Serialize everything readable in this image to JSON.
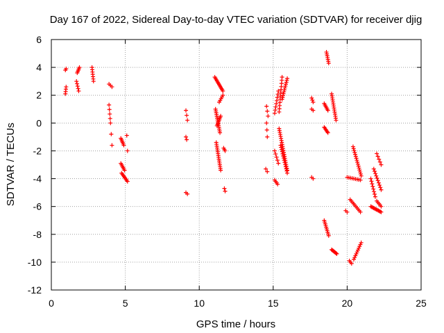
{
  "chart_data": {
    "type": "scatter",
    "title": "Day 167 of 2022, Sidereal Day-to-day VTEC variation (SDTVAR) for receiver djig",
    "xlabel": "GPS time / hours",
    "ylabel": "SDTVAR / TECUs",
    "xlim": [
      0,
      25
    ],
    "ylim": [
      -12,
      6
    ],
    "xticks": [
      0,
      5,
      10,
      15,
      20,
      25
    ],
    "yticks": [
      -12,
      -10,
      -8,
      -6,
      -4,
      -2,
      0,
      2,
      4,
      6
    ],
    "grid": true,
    "marker": "+",
    "color": "#ff0000",
    "segments": [
      {
        "x0": 0.95,
        "x1": 1.0,
        "y0": 2.1,
        "y1": 2.6,
        "n": 4
      },
      {
        "x0": 0.95,
        "x1": 1.0,
        "y0": 3.8,
        "y1": 3.9,
        "n": 2
      },
      {
        "x0": 1.75,
        "x1": 1.9,
        "y0": 3.6,
        "y1": 4.0,
        "n": 5
      },
      {
        "x0": 1.7,
        "x1": 1.85,
        "y0": 3.0,
        "y1": 2.3,
        "n": 5
      },
      {
        "x0": 2.75,
        "x1": 2.85,
        "y0": 4.0,
        "y1": 3.0,
        "n": 7
      },
      {
        "x0": 3.9,
        "x1": 4.1,
        "y0": 2.8,
        "y1": 2.6,
        "n": 3
      },
      {
        "x0": 3.9,
        "x1": 4.0,
        "y0": 1.3,
        "y1": 0.0,
        "n": 5
      },
      {
        "x0": 4.05,
        "x1": 4.1,
        "y0": -0.8,
        "y1": -1.6,
        "n": 2
      },
      {
        "x0": 4.7,
        "x1": 4.9,
        "y0": -1.1,
        "y1": -1.6,
        "n": 6
      },
      {
        "x0": 5.1,
        "x1": 5.15,
        "y0": -0.9,
        "y1": -2.0,
        "n": 2
      },
      {
        "x0": 4.7,
        "x1": 4.95,
        "y0": -2.9,
        "y1": -3.4,
        "n": 6
      },
      {
        "x0": 4.75,
        "x1": 5.15,
        "y0": -3.6,
        "y1": -4.2,
        "n": 8
      },
      {
        "x0": 9.1,
        "x1": 9.2,
        "y0": 0.9,
        "y1": 0.2,
        "n": 3
      },
      {
        "x0": 9.1,
        "x1": 9.15,
        "y0": -1.0,
        "y1": -1.2,
        "n": 2
      },
      {
        "x0": 9.1,
        "x1": 9.2,
        "y0": -5.0,
        "y1": -5.1,
        "n": 2
      },
      {
        "x0": 11.05,
        "x1": 11.6,
        "y0": 3.3,
        "y1": 2.3,
        "n": 12
      },
      {
        "x0": 11.35,
        "x1": 11.6,
        "y0": 1.5,
        "y1": 2.0,
        "n": 5
      },
      {
        "x0": 11.1,
        "x1": 11.4,
        "y0": 1.0,
        "y1": -0.7,
        "n": 14
      },
      {
        "x0": 11.2,
        "x1": 11.45,
        "y0": -0.2,
        "y1": 0.5,
        "n": 8
      },
      {
        "x0": 11.15,
        "x1": 11.45,
        "y0": -1.4,
        "y1": -3.4,
        "n": 16
      },
      {
        "x0": 11.65,
        "x1": 11.75,
        "y0": -1.8,
        "y1": -2.0,
        "n": 3
      },
      {
        "x0": 11.7,
        "x1": 11.75,
        "y0": -4.7,
        "y1": -4.9,
        "n": 2
      },
      {
        "x0": 14.55,
        "x1": 14.65,
        "y0": 1.2,
        "y1": 0.5,
        "n": 3
      },
      {
        "x0": 14.55,
        "x1": 14.6,
        "y0": 0.0,
        "y1": -1.0,
        "n": 3
      },
      {
        "x0": 14.5,
        "x1": 14.6,
        "y0": -3.3,
        "y1": -3.5,
        "n": 2
      },
      {
        "x0": 15.1,
        "x1": 15.35,
        "y0": 0.7,
        "y1": 2.3,
        "n": 8
      },
      {
        "x0": 15.1,
        "x1": 15.35,
        "y0": -2.0,
        "y1": -2.9,
        "n": 5
      },
      {
        "x0": 15.1,
        "x1": 15.3,
        "y0": -4.1,
        "y1": -4.4,
        "n": 4
      },
      {
        "x0": 15.4,
        "x1": 15.6,
        "y0": 0.8,
        "y1": 3.3,
        "n": 12
      },
      {
        "x0": 15.6,
        "x1": 15.95,
        "y0": 1.7,
        "y1": 3.2,
        "n": 12
      },
      {
        "x0": 15.4,
        "x1": 15.95,
        "y0": -0.4,
        "y1": -3.4,
        "n": 22
      },
      {
        "x0": 15.5,
        "x1": 15.95,
        "y0": -1.6,
        "y1": -3.6,
        "n": 14
      },
      {
        "x0": 17.6,
        "x1": 17.7,
        "y0": 1.8,
        "y1": 1.5,
        "n": 3
      },
      {
        "x0": 17.6,
        "x1": 17.7,
        "y0": 1.0,
        "y1": 0.9,
        "n": 2
      },
      {
        "x0": 17.6,
        "x1": 17.7,
        "y0": -3.9,
        "y1": -4.0,
        "n": 2
      },
      {
        "x0": 18.6,
        "x1": 18.75,
        "y0": 5.1,
        "y1": 4.3,
        "n": 7
      },
      {
        "x0": 18.45,
        "x1": 18.7,
        "y0": 1.4,
        "y1": 0.9,
        "n": 6
      },
      {
        "x0": 18.45,
        "x1": 18.7,
        "y0": -0.3,
        "y1": -0.7,
        "n": 6
      },
      {
        "x0": 18.95,
        "x1": 19.25,
        "y0": 2.1,
        "y1": 0.2,
        "n": 14
      },
      {
        "x0": 18.45,
        "x1": 18.75,
        "y0": -7.0,
        "y1": -8.1,
        "n": 10
      },
      {
        "x0": 18.95,
        "x1": 19.3,
        "y0": -9.1,
        "y1": -9.4,
        "n": 8
      },
      {
        "x0": 19.9,
        "x1": 20.0,
        "y0": -6.3,
        "y1": -6.4,
        "n": 2
      },
      {
        "x0": 20.15,
        "x1": 20.3,
        "y0": -9.9,
        "y1": -10.1,
        "n": 3
      },
      {
        "x0": 20.45,
        "x1": 20.95,
        "y0": -9.8,
        "y1": -8.6,
        "n": 10
      },
      {
        "x0": 20.0,
        "x1": 20.9,
        "y0": -3.9,
        "y1": -4.1,
        "n": 9
      },
      {
        "x0": 20.4,
        "x1": 20.95,
        "y0": -1.7,
        "y1": -3.8,
        "n": 16
      },
      {
        "x0": 20.2,
        "x1": 20.9,
        "y0": -5.5,
        "y1": -6.4,
        "n": 10
      },
      {
        "x0": 21.6,
        "x1": 21.9,
        "y0": -4.0,
        "y1": -5.3,
        "n": 8
      },
      {
        "x0": 21.6,
        "x1": 22.3,
        "y0": -6.0,
        "y1": -6.4,
        "n": 12
      },
      {
        "x0": 21.8,
        "x1": 22.3,
        "y0": -3.3,
        "y1": -4.8,
        "n": 10
      },
      {
        "x0": 22.0,
        "x1": 22.3,
        "y0": -2.2,
        "y1": -3.0,
        "n": 5
      },
      {
        "x0": 22.0,
        "x1": 22.3,
        "y0": -5.6,
        "y1": -6.0,
        "n": 5
      }
    ]
  }
}
